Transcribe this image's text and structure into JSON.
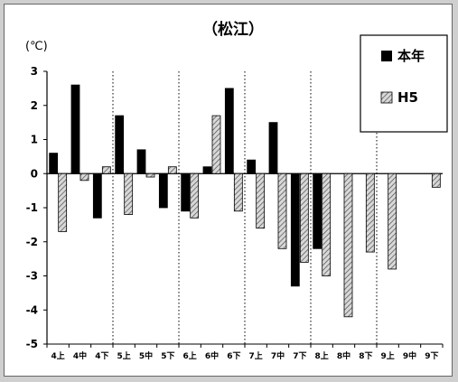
{
  "chart_data": {
    "type": "bar",
    "title": "（松江）",
    "ylabel": "(℃)",
    "ylim": [
      -5,
      3
    ],
    "yticks": [
      3,
      2,
      1,
      0,
      -1,
      -2,
      -3,
      -4,
      -5
    ],
    "categories": [
      "4上",
      "4中",
      "4下",
      "5上",
      "5中",
      "5下",
      "6上",
      "6中",
      "6下",
      "7上",
      "7中",
      "7下",
      "8上",
      "8中",
      "8下",
      "9上",
      "9中",
      "9下"
    ],
    "series": [
      {
        "name": "本年",
        "color": "#000000",
        "pattern": "solid",
        "values": [
          0.6,
          2.6,
          -1.3,
          1.7,
          0.7,
          -1.0,
          -1.1,
          0.2,
          2.5,
          0.4,
          1.5,
          -3.3,
          -2.2,
          null,
          null,
          null,
          null,
          null
        ]
      },
      {
        "name": "H5",
        "color": "#999999",
        "pattern": "hatched",
        "values": [
          -1.7,
          -0.2,
          0.2,
          -1.2,
          -0.1,
          0.2,
          -1.3,
          1.7,
          -1.1,
          -1.6,
          -2.2,
          -2.6,
          -3.0,
          -4.2,
          -2.3,
          -2.8,
          null,
          -0.4
        ]
      }
    ],
    "grid": "vertical dotted every 3 categories",
    "legend_position": "top-right"
  }
}
